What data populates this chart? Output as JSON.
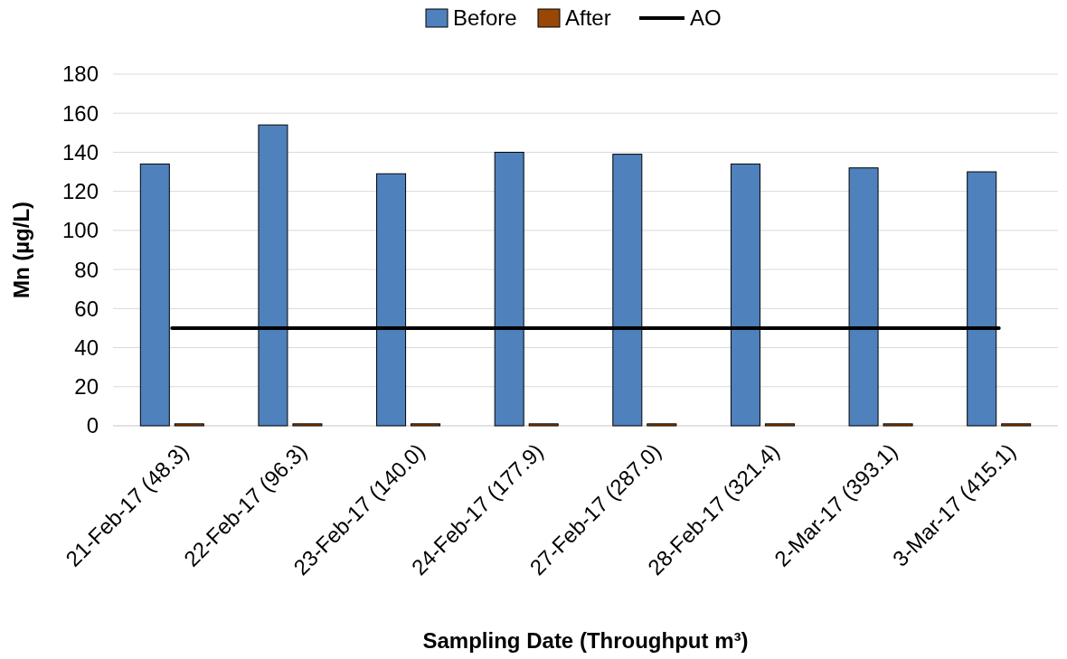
{
  "chart_data": {
    "type": "bar",
    "xlabel": "Sampling Date (Throughput m³)",
    "ylabel": "Mn (µg/L)",
    "categories": [
      "21-Feb-17 (48.3)",
      "22-Feb-17 (96.3)",
      "23-Feb-17 (140.0)",
      "24-Feb-17 (177.9)",
      "27-Feb-17 (287.0)",
      "28-Feb-17 (321.4)",
      "2-Mar-17 (393.1)",
      "3-Mar-17 (415.1)"
    ],
    "series": [
      {
        "name": "Before",
        "color": "#4f81bd",
        "values": [
          134,
          154,
          129,
          140,
          139,
          134,
          132,
          130
        ]
      },
      {
        "name": "After",
        "color": "#974706",
        "values": [
          1,
          1,
          1,
          1,
          1,
          1,
          1,
          1
        ]
      },
      {
        "name": "AO",
        "type": "line",
        "color": "#000000",
        "values": [
          50,
          50,
          50,
          50,
          50,
          50,
          50,
          50
        ]
      }
    ],
    "ylim": [
      0,
      180
    ],
    "yticks": [
      0,
      20,
      40,
      60,
      80,
      100,
      120,
      140,
      160,
      180
    ],
    "grid": "y",
    "legend": "top"
  }
}
